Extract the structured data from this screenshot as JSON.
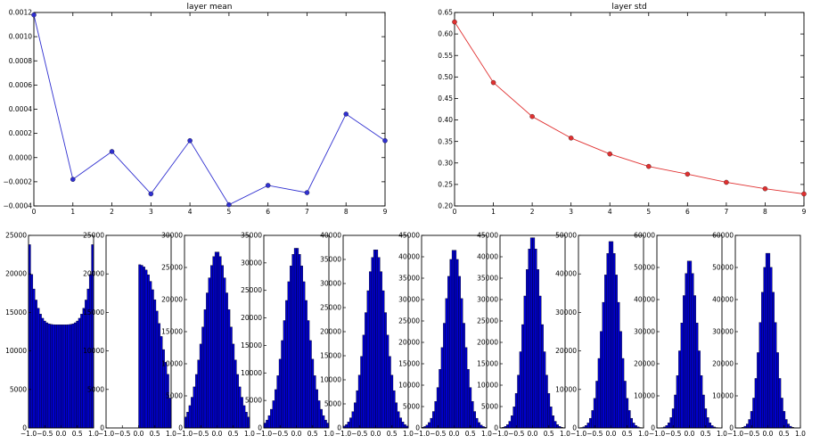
{
  "chart_data": [
    {
      "type": "line",
      "title": "layer mean",
      "x": [
        0,
        1,
        2,
        3,
        4,
        5,
        6,
        7,
        8,
        9
      ],
      "series": [
        {
          "values": [
            0.00118,
            -0.00018,
            5e-05,
            -0.0003,
            0.00014,
            -0.00039,
            -0.00023,
            -0.00029,
            0.00036,
            0.00014
          ]
        }
      ],
      "xlim": [
        0,
        9
      ],
      "ylim": [
        -0.0004,
        0.0012
      ],
      "xticks": [
        0,
        1,
        2,
        3,
        4,
        5,
        6,
        7,
        8,
        9
      ],
      "yticks": [
        -0.0004,
        -0.0002,
        0.0,
        0.0002,
        0.0004,
        0.0006,
        0.0008,
        0.001,
        0.0012
      ],
      "ytick_labels": [
        "−0.0004",
        "−0.0002",
        "0.0000",
        "0.0002",
        "0.0004",
        "0.0006",
        "0.0008",
        "0.0010",
        "0.0012"
      ],
      "color": "#3030d0",
      "grid": false
    },
    {
      "type": "line",
      "title": "layer std",
      "x": [
        0,
        1,
        2,
        3,
        4,
        5,
        6,
        7,
        8,
        9
      ],
      "series": [
        {
          "values": [
            0.628,
            0.487,
            0.408,
            0.358,
            0.321,
            0.292,
            0.274,
            0.255,
            0.24,
            0.228
          ]
        }
      ],
      "xlim": [
        0,
        9
      ],
      "ylim": [
        0.2,
        0.65
      ],
      "xticks": [
        0,
        1,
        2,
        3,
        4,
        5,
        6,
        7,
        8,
        9
      ],
      "yticks": [
        0.2,
        0.25,
        0.3,
        0.35,
        0.4,
        0.45,
        0.5,
        0.55,
        0.6,
        0.65
      ],
      "ytick_labels": [
        "0.20",
        "0.25",
        "0.30",
        "0.35",
        "0.40",
        "0.45",
        "0.50",
        "0.55",
        "0.60",
        "0.65"
      ],
      "color": "#e03030",
      "grid": false
    },
    {
      "type": "histograms",
      "color": "#0000cc",
      "xlim": [
        -1,
        1
      ],
      "xtick_labels": [
        "−1.0",
        "−0.5",
        "0.0",
        "0.5",
        "1.0"
      ],
      "panels": [
        {
          "ymax": 25000,
          "yticks": [
            0,
            5000,
            10000,
            15000,
            20000,
            25000
          ],
          "ytick_labels": [
            "0",
            "5000",
            "10000",
            "15000",
            "20000",
            "25000"
          ],
          "shape": "u",
          "peak": 23800,
          "min": 13400,
          "std": 0.62
        },
        {
          "ymax": 25000,
          "yticks": [
            0,
            5000,
            10000,
            15000,
            20000,
            25000
          ],
          "ytick_labels": [
            "0",
            "5000",
            "10000",
            "15000",
            "20000",
            "25000"
          ],
          "shape": "dome",
          "peak": 21200,
          "std": 0.49
        },
        {
          "ymax": 30000,
          "yticks": [
            0,
            5000,
            10000,
            15000,
            20000,
            25000,
            30000
          ],
          "ytick_labels": [
            "0",
            "5000",
            "10000",
            "15000",
            "20000",
            "25000",
            "30000"
          ],
          "shape": "bell",
          "peak": 27500,
          "std": 0.41
        },
        {
          "ymax": 35000,
          "yticks": [
            0,
            5000,
            10000,
            15000,
            20000,
            25000,
            30000,
            35000
          ],
          "ytick_labels": [
            "0",
            "5000",
            "10000",
            "15000",
            "20000",
            "25000",
            "30000",
            "35000"
          ],
          "shape": "bell",
          "peak": 32800,
          "std": 0.36
        },
        {
          "ymax": 40000,
          "yticks": [
            0,
            5000,
            10000,
            15000,
            20000,
            25000,
            30000,
            35000,
            40000
          ],
          "ytick_labels": [
            "0",
            "5000",
            "10000",
            "15000",
            "20000",
            "25000",
            "30000",
            "35000",
            "40000"
          ],
          "shape": "bell",
          "peak": 37200,
          "std": 0.32
        },
        {
          "ymax": 45000,
          "yticks": [
            0,
            5000,
            10000,
            15000,
            20000,
            25000,
            30000,
            35000,
            40000,
            45000
          ],
          "ytick_labels": [
            "0",
            "5000",
            "10000",
            "15000",
            "20000",
            "25000",
            "30000",
            "35000",
            "40000",
            "45000"
          ],
          "shape": "bell",
          "peak": 41800,
          "std": 0.29
        },
        {
          "ymax": 45000,
          "yticks": [
            0,
            5000,
            10000,
            15000,
            20000,
            25000,
            30000,
            35000,
            40000,
            45000
          ],
          "ytick_labels": [
            "0",
            "5000",
            "10000",
            "15000",
            "20000",
            "25000",
            "30000",
            "35000",
            "40000",
            "45000"
          ],
          "shape": "bell",
          "peak": 44800,
          "std": 0.27
        },
        {
          "ymax": 50000,
          "yticks": [
            0,
            10000,
            20000,
            30000,
            40000,
            50000
          ],
          "ytick_labels": [
            "0",
            "10000",
            "20000",
            "30000",
            "40000",
            "50000"
          ],
          "shape": "bell",
          "peak": 48800,
          "std": 0.26
        },
        {
          "ymax": 60000,
          "yticks": [
            0,
            10000,
            20000,
            30000,
            40000,
            50000,
            60000
          ],
          "ytick_labels": [
            "0",
            "10000",
            "20000",
            "30000",
            "40000",
            "50000",
            "60000"
          ],
          "shape": "bell",
          "peak": 52500,
          "std": 0.24
        },
        {
          "ymax": 60000,
          "yticks": [
            0,
            10000,
            20000,
            30000,
            40000,
            50000,
            60000
          ],
          "ytick_labels": [
            "0",
            "10000",
            "20000",
            "30000",
            "40000",
            "50000",
            "60000"
          ],
          "shape": "bell",
          "peak": 55000,
          "std": 0.23
        }
      ]
    }
  ]
}
